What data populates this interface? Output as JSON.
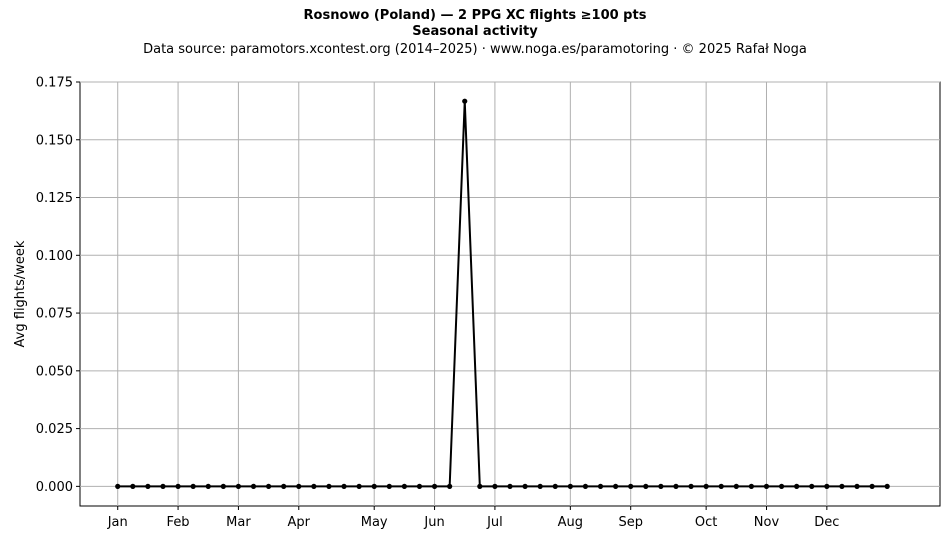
{
  "chart_data": {
    "type": "line",
    "title": "Rosnowo (Poland)  —  2 PPG XC flights ≥100 pts",
    "subtitle": "Seasonal activity",
    "source_note": "Data source: paramotors.xcontest.org (2014–2025)  ·  www.noga.es/paramotoring  ·  © 2025 Rafał Noga",
    "xlabel": "",
    "ylabel": "Avg flights/week",
    "ylim": [
      -0.0085,
      0.175
    ],
    "xlim": [
      -2.5,
      54.5
    ],
    "yticks": [
      0.0,
      0.025,
      0.05,
      0.075,
      0.1,
      0.125,
      0.15,
      0.175
    ],
    "ytick_labels": [
      "0.000",
      "0.025",
      "0.050",
      "0.075",
      "0.100",
      "0.125",
      "0.150",
      "0.175"
    ],
    "xticks": [
      {
        "label": "Jan",
        "pos": 0
      },
      {
        "label": "Feb",
        "pos": 4
      },
      {
        "label": "Mar",
        "pos": 8
      },
      {
        "label": "Apr",
        "pos": 12
      },
      {
        "label": "May",
        "pos": 17
      },
      {
        "label": "Jun",
        "pos": 21
      },
      {
        "label": "Jul",
        "pos": 25
      },
      {
        "label": "Aug",
        "pos": 30
      },
      {
        "label": "Sep",
        "pos": 34
      },
      {
        "label": "Oct",
        "pos": 39
      },
      {
        "label": "Nov",
        "pos": 43
      },
      {
        "label": "Dec",
        "pos": 47
      }
    ],
    "grid": true,
    "series": [
      {
        "color": "#000000",
        "x": [
          0,
          1,
          2,
          3,
          4,
          5,
          6,
          7,
          8,
          9,
          10,
          11,
          12,
          13,
          14,
          15,
          16,
          17,
          18,
          19,
          20,
          21,
          22,
          23,
          24,
          25,
          26,
          27,
          28,
          29,
          30,
          31,
          32,
          33,
          34,
          35,
          36,
          37,
          38,
          39,
          40,
          41,
          42,
          43,
          44,
          45,
          46,
          47,
          48,
          49,
          50,
          51
        ],
        "values": [
          0,
          0,
          0,
          0,
          0,
          0,
          0,
          0,
          0,
          0,
          0,
          0,
          0,
          0,
          0,
          0,
          0,
          0,
          0,
          0,
          0,
          0,
          0,
          0.1667,
          0,
          0,
          0,
          0,
          0,
          0,
          0,
          0,
          0,
          0,
          0,
          0,
          0,
          0,
          0,
          0,
          0,
          0,
          0,
          0,
          0,
          0,
          0,
          0,
          0,
          0,
          0,
          0
        ]
      }
    ]
  }
}
